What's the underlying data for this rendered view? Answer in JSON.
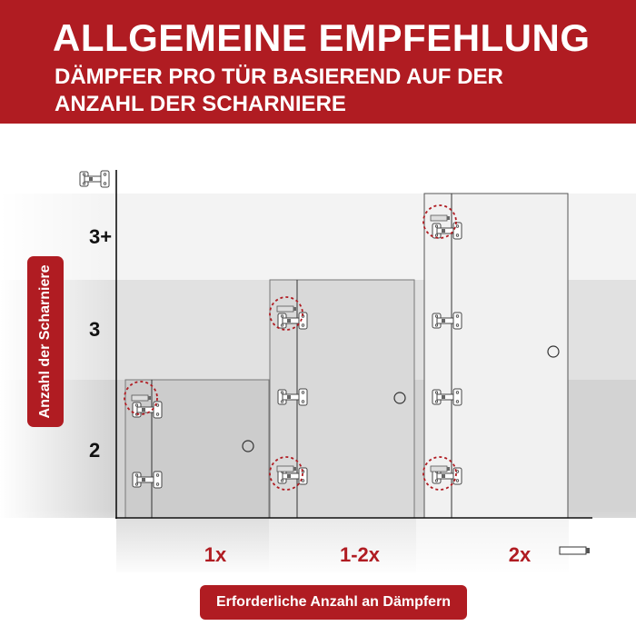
{
  "header": {
    "title": "ALLGEMEINE EMPFEHLUNG",
    "subtitle_line1": "DÄMPFER PRO TÜR BASIEREND AUF DER",
    "subtitle_line2": "ANZAHL DER SCHARNIERE"
  },
  "y_axis": {
    "label": "Anzahl der Scharniere",
    "icon": "hinge-icon",
    "ticks": [
      "3+",
      "3",
      "2"
    ]
  },
  "x_axis": {
    "label": "Erforderliche Anzahl an Dämpfern",
    "icon": "damper-icon",
    "ticks": [
      "1x",
      "1-2x",
      "2x"
    ]
  },
  "doors": [
    {
      "hinges": 2,
      "dampers": "1x",
      "damper_marked_hinges": [
        1
      ]
    },
    {
      "hinges": 3,
      "dampers": "1-2x",
      "damper_marked_hinges": [
        1,
        3
      ]
    },
    {
      "hinges": "3+",
      "dampers": "2x",
      "damper_marked_hinges": [
        1,
        4
      ]
    }
  ],
  "colors": {
    "brand_red": "#b01c22",
    "door_fill": "#cccccc",
    "damper_circle": "#b01c22"
  }
}
